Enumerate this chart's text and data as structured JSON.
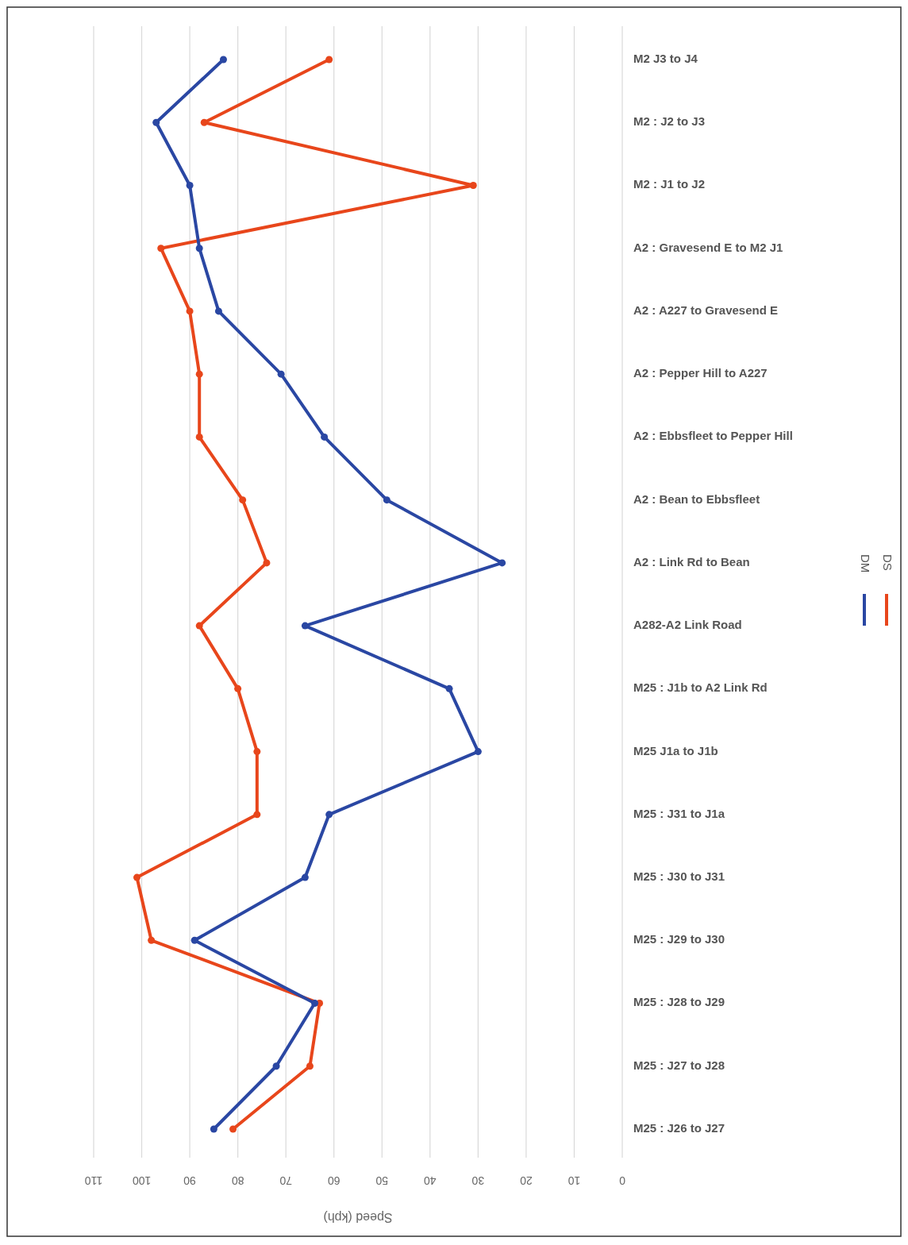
{
  "chart_data": {
    "type": "line",
    "orientation": "horizontal",
    "xlabel": "Speed (kph)",
    "categories": [
      "M2 J3 to J4",
      "M2 : J2 to J3",
      "M2 : J1 to J2",
      "A2 : Gravesend E to M2 J1",
      "A2 : A227 to Gravesend E",
      "A2 : Pepper Hill to A227",
      "A2 : Ebbsfleet to Pepper Hill",
      "A2 : Bean to Ebbsfleet",
      "A2 : Link Rd to Bean",
      "A282-A2 Link Road",
      "M25 : J1b to A2 Link Rd",
      "M25 J1a to J1b",
      "M25 : J31 to J1a",
      "M25 : J30 to J31",
      "M25 : J29 to J30",
      "M25 : J28 to J29",
      "M25 : J27 to J28",
      "M25 : J26 to J27"
    ],
    "series": [
      {
        "name": "DM",
        "color": "#2a47a3",
        "values": [
          83,
          97,
          90,
          88,
          84,
          71,
          62,
          49,
          25,
          66,
          36,
          30,
          61,
          66,
          89,
          64,
          72,
          85
        ]
      },
      {
        "name": "DS",
        "color": "#e8461b",
        "values": [
          61,
          87,
          31,
          96,
          90,
          88,
          88,
          79,
          74,
          88,
          80,
          76,
          76,
          101,
          98,
          63,
          65,
          81
        ]
      }
    ],
    "xlim": [
      110,
      0
    ],
    "xticks": [
      110,
      100,
      90,
      80,
      70,
      60,
      50,
      40,
      30,
      20,
      10,
      0
    ],
    "grid": "x",
    "legend": "right",
    "marker": "circle",
    "line_style": "solid"
  }
}
